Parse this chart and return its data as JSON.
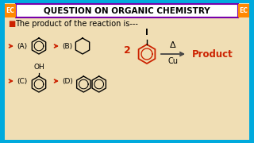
{
  "title": "QUESTION ON ORGANIC CHEMISTRY",
  "question": "The product of the reaction is---",
  "bg_color": "#F0DEB4",
  "border_color": "#00AADD",
  "title_box_color": "#FFFFFF",
  "title_border_color": "#7700AA",
  "ec_color": "#FF8800",
  "red_color": "#CC2200",
  "arrow_color": "#444444",
  "label_A": "(A)",
  "label_B": "(B)",
  "label_C": "(C)",
  "label_D": "(D)",
  "reaction_coeff": "2",
  "delta": "Δ",
  "cu": "Cu",
  "product_label": "Product",
  "iodine_label": "I",
  "oh_label": "OH"
}
